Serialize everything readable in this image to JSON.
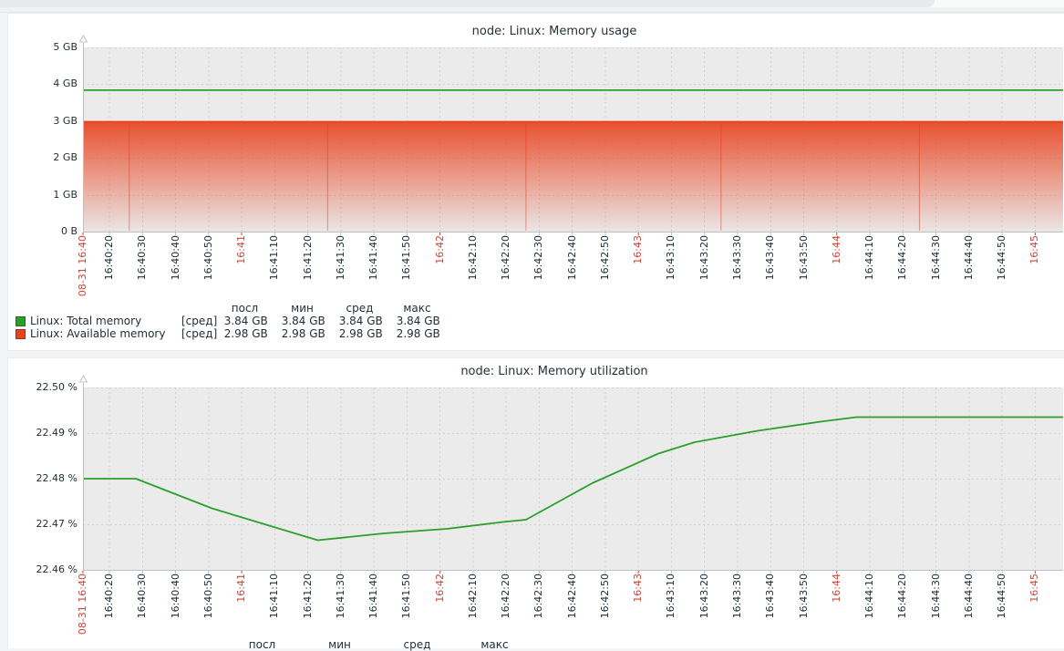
{
  "visual": {
    "accent_green": "#2aa02a",
    "accent_red": "#e8431f",
    "plot_bg": "#ebebeb",
    "grid": "#ccd2d7",
    "axis": "#b9c2ca",
    "tick_red": "#cb4634",
    "text": "#1f2c33"
  },
  "x_axis": {
    "range_start_label": "08-31 16:40",
    "range_seconds": 297,
    "tick_interval_s": 10,
    "ticks": [
      {
        "t": 0,
        "label": "08-31 16:40",
        "red": true
      },
      {
        "t": 8,
        "label": "16:40:20"
      },
      {
        "t": 18,
        "label": "16:40:30"
      },
      {
        "t": 28,
        "label": "16:40:40"
      },
      {
        "t": 38,
        "label": "16:40:50"
      },
      {
        "t": 48,
        "label": "16:41",
        "red": true
      },
      {
        "t": 58,
        "label": "16:41:10"
      },
      {
        "t": 68,
        "label": "16:41:20"
      },
      {
        "t": 78,
        "label": "16:41:30"
      },
      {
        "t": 88,
        "label": "16:41:40"
      },
      {
        "t": 98,
        "label": "16:41:50"
      },
      {
        "t": 108,
        "label": "16:42",
        "red": true
      },
      {
        "t": 118,
        "label": "16:42:10"
      },
      {
        "t": 128,
        "label": "16:42:20"
      },
      {
        "t": 138,
        "label": "16:42:30"
      },
      {
        "t": 148,
        "label": "16:42:40"
      },
      {
        "t": 158,
        "label": "16:42:50"
      },
      {
        "t": 168,
        "label": "16:43",
        "red": true
      },
      {
        "t": 178,
        "label": "16:43:10"
      },
      {
        "t": 188,
        "label": "16:43:20"
      },
      {
        "t": 198,
        "label": "16:43:30"
      },
      {
        "t": 208,
        "label": "16:43:40"
      },
      {
        "t": 218,
        "label": "16:43:50"
      },
      {
        "t": 228,
        "label": "16:44",
        "red": true
      },
      {
        "t": 238,
        "label": "16:44:10"
      },
      {
        "t": 248,
        "label": "16:44:20"
      },
      {
        "t": 258,
        "label": "16:44:30"
      },
      {
        "t": 268,
        "label": "16:44:40"
      },
      {
        "t": 278,
        "label": "16:44:50"
      },
      {
        "t": 288,
        "label": "16:45",
        "red": true
      }
    ]
  },
  "charts": [
    {
      "title": "node: Linux: Memory usage",
      "y_axis": {
        "unit": "GB",
        "min": 0,
        "max": 5,
        "ticks": [
          {
            "v": 0,
            "label": "0 B"
          },
          {
            "v": 1,
            "label": "1 GB"
          },
          {
            "v": 2,
            "label": "2 GB"
          },
          {
            "v": 3,
            "label": "3 GB"
          },
          {
            "v": 4,
            "label": "4 GB"
          },
          {
            "v": 5,
            "label": "5 GB"
          }
        ]
      },
      "legend": {
        "headers": [
          "посл",
          "мин",
          "сред",
          "макс"
        ],
        "rows": [
          {
            "color": "#2aa02a",
            "name": "Linux: Total memory",
            "func": "[сред]",
            "values": [
              "3.84 GB",
              "3.84 GB",
              "3.84 GB",
              "3.84 GB"
            ]
          },
          {
            "color": "#e8431f",
            "name": "Linux: Available memory",
            "func": "[сред]",
            "values": [
              "2.98 GB",
              "2.98 GB",
              "2.98 GB",
              "2.98 GB"
            ]
          }
        ]
      }
    },
    {
      "title": "node: Linux: Memory utilization",
      "y_axis": {
        "unit": "%",
        "min": 22.46,
        "max": 22.5,
        "ticks": [
          {
            "v": 22.46,
            "label": "22.46 %"
          },
          {
            "v": 22.47,
            "label": "22.47 %"
          },
          {
            "v": 22.48,
            "label": "22.48 %"
          },
          {
            "v": 22.49,
            "label": "22.49 %"
          },
          {
            "v": 22.5,
            "label": "22.50 %"
          }
        ]
      },
      "legend": {
        "headers": [
          "посл",
          "мин",
          "сред",
          "макс"
        ],
        "rows": []
      }
    }
  ],
  "chart_data": [
    {
      "type": "area",
      "title": "node: Linux: Memory usage",
      "x_start": "08-31 16:40",
      "x_end": "16:45",
      "x_tick_interval_s": 10,
      "ylim": [
        0,
        5
      ],
      "yunit": "GB",
      "grid": true,
      "legend_position": "bottom",
      "series": [
        {
          "name": "Linux: Total memory",
          "style": "line",
          "color": "#2aa02a",
          "t": [
            0,
            297
          ],
          "v": [
            3.84,
            3.84
          ],
          "stats": {
            "last": "3.84 GB",
            "min": "3.84 GB",
            "avg": "3.84 GB",
            "max": "3.84 GB"
          }
        },
        {
          "name": "Linux: Available memory",
          "style": "area",
          "color": "#e8431f",
          "t": [
            0,
            297
          ],
          "v": [
            2.98,
            2.98
          ],
          "stats": {
            "last": "2.98 GB",
            "min": "2.98 GB",
            "avg": "2.98 GB",
            "max": "2.98 GB"
          }
        }
      ],
      "area_seams_t": [
        14,
        74,
        134,
        193,
        253
      ]
    },
    {
      "type": "line",
      "title": "node: Linux: Memory utilization",
      "x_start": "08-31 16:40",
      "x_end": "16:45",
      "x_tick_interval_s": 10,
      "ylim": [
        22.46,
        22.5
      ],
      "yunit": "%",
      "grid": true,
      "legend_position": "bottom",
      "series": [
        {
          "name": "Linux: Memory utilization",
          "style": "line",
          "color": "#2aa02a",
          "t": [
            0,
            16,
            39,
            71,
            91,
            110,
            127,
            134,
            154,
            174,
            185,
            204,
            223,
            234,
            297
          ],
          "v": [
            22.48,
            22.48,
            22.4735,
            22.4665,
            22.468,
            22.469,
            22.4705,
            22.471,
            22.479,
            22.4855,
            22.488,
            22.4905,
            22.4925,
            22.4935,
            22.4935
          ]
        }
      ]
    }
  ]
}
